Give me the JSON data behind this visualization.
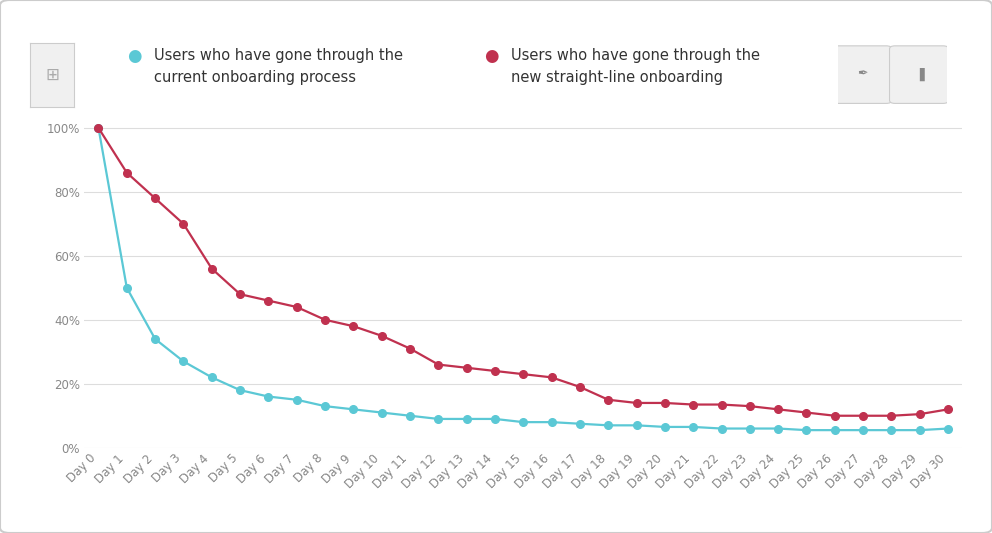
{
  "days": [
    0,
    1,
    2,
    3,
    4,
    5,
    6,
    7,
    8,
    9,
    10,
    11,
    12,
    13,
    14,
    15,
    16,
    17,
    18,
    19,
    20,
    21,
    22,
    23,
    24,
    25,
    26,
    27,
    28,
    29,
    30
  ],
  "current_onboarding": [
    1.0,
    0.5,
    0.34,
    0.27,
    0.22,
    0.18,
    0.16,
    0.15,
    0.13,
    0.12,
    0.11,
    0.1,
    0.09,
    0.09,
    0.09,
    0.08,
    0.08,
    0.075,
    0.07,
    0.07,
    0.065,
    0.065,
    0.06,
    0.06,
    0.06,
    0.055,
    0.055,
    0.055,
    0.055,
    0.055,
    0.06
  ],
  "new_onboarding": [
    1.0,
    0.86,
    0.78,
    0.7,
    0.56,
    0.48,
    0.46,
    0.44,
    0.4,
    0.38,
    0.35,
    0.31,
    0.26,
    0.25,
    0.24,
    0.23,
    0.22,
    0.19,
    0.15,
    0.14,
    0.14,
    0.135,
    0.135,
    0.13,
    0.12,
    0.11,
    0.1,
    0.1,
    0.1,
    0.105,
    0.12
  ],
  "current_color": "#5BC8D5",
  "new_color": "#C0314F",
  "bg_color": "#FFFFFF",
  "panel_color": "#FFFFFF",
  "border_color": "#CCCCCC",
  "grid_color": "#DDDDDD",
  "legend1_line1": "Users who have gone through the",
  "legend1_line2": "current onboarding process",
  "legend2_line1": "Users who have gone through the",
  "legend2_line2": "new straight-line onboarding",
  "ylim": [
    0,
    1.05
  ],
  "yticks": [
    0,
    0.2,
    0.4,
    0.6,
    0.8,
    1.0
  ],
  "ytick_labels": [
    "0%",
    "20%",
    "40%",
    "60%",
    "80%",
    "100%"
  ],
  "marker_size": 5.5,
  "linewidth": 1.6,
  "tick_fontsize": 8.5,
  "legend_fontsize": 10.5
}
